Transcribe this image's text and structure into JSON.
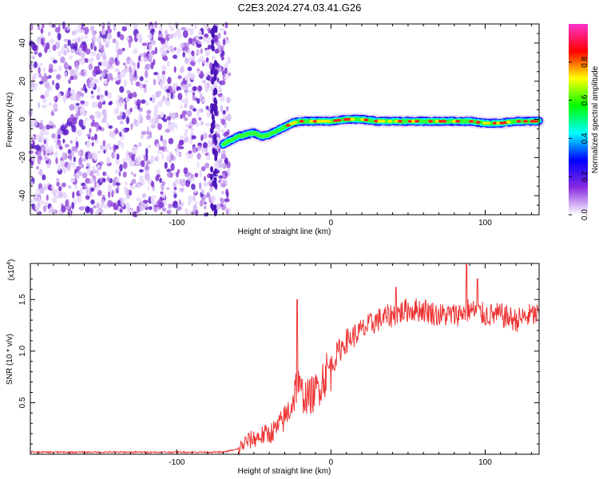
{
  "title": "C2E3.2024.274.03.41.G26",
  "chart_data": [
    {
      "type": "heatmap",
      "xlabel": "Height of straight line (km)",
      "ylabel": "Frequency (Hz)",
      "xlim": [
        -195,
        135
      ],
      "ylim": [
        -50,
        50
      ],
      "xticks": [
        -100,
        0,
        100
      ],
      "yticks": [
        -40,
        -20,
        0,
        20,
        40
      ],
      "colorbar": {
        "label": "Normalized spectral amplitude",
        "range": [
          0,
          1
        ],
        "ticks": [
          "0.0",
          "0.2",
          "0.4",
          "0.6",
          "0.8"
        ],
        "colors": [
          "#ffffff",
          "#8a2be2",
          "#0000ff",
          "#00ffff",
          "#00ff00",
          "#ffff00",
          "#ff0000",
          "#ff33cc"
        ]
      },
      "noise_region_x": [
        -195,
        -70
      ],
      "signal_trace": {
        "x": [
          -70,
          -65,
          -60,
          -55,
          -50,
          -45,
          -40,
          -35,
          -30,
          -25,
          -20,
          -10,
          0,
          10,
          20,
          30,
          40,
          50,
          60,
          70,
          80,
          90,
          100,
          110,
          120,
          130,
          135
        ],
        "y": [
          -13,
          -11,
          -9,
          -8,
          -7,
          -9,
          -8,
          -6,
          -4,
          -2,
          -1,
          -1,
          -1,
          0,
          0,
          -1,
          -1,
          -1,
          -1,
          -1,
          -1,
          -1,
          -2,
          -2,
          -1,
          -1,
          -1
        ]
      }
    },
    {
      "type": "line",
      "xlabel": "Height of straight line (km)",
      "ylabel": "SNR (10 * v/v)",
      "multiplier": "(x10",
      "multiplier_exp": "4",
      "xlim": [
        -195,
        135
      ],
      "ylim": [
        0,
        1.85
      ],
      "xticks": [
        -100,
        0,
        100
      ],
      "yticks": [
        0.5,
        1.0,
        1.5
      ],
      "ytick_labels": [
        "0.5",
        "1.0",
        "1.5"
      ],
      "color": "#ee3333",
      "series": [
        {
          "x": [
            -195,
            -150,
            -100,
            -70,
            -60,
            -55,
            -50,
            -45,
            -40,
            -35,
            -30,
            -25,
            -22,
            -20,
            -15,
            -10,
            -5,
            0,
            5,
            10,
            20,
            30,
            40,
            50,
            60,
            70,
            80,
            90,
            100,
            110,
            120,
            130,
            135
          ],
          "y": [
            0.02,
            0.02,
            0.02,
            0.02,
            0.05,
            0.12,
            0.15,
            0.18,
            0.2,
            0.25,
            0.35,
            0.5,
            0.7,
            0.6,
            0.55,
            0.6,
            0.75,
            0.85,
            1.0,
            1.1,
            1.2,
            1.3,
            1.35,
            1.4,
            1.4,
            1.35,
            1.35,
            1.4,
            1.35,
            1.35,
            1.3,
            1.35,
            1.35
          ],
          "peaks": [
            {
              "x": -22,
              "y": 1.5
            },
            {
              "x": 88,
              "y": 1.84
            },
            {
              "x": 95,
              "y": 1.7
            },
            {
              "x": 42,
              "y": 1.62
            }
          ]
        }
      ]
    }
  ]
}
